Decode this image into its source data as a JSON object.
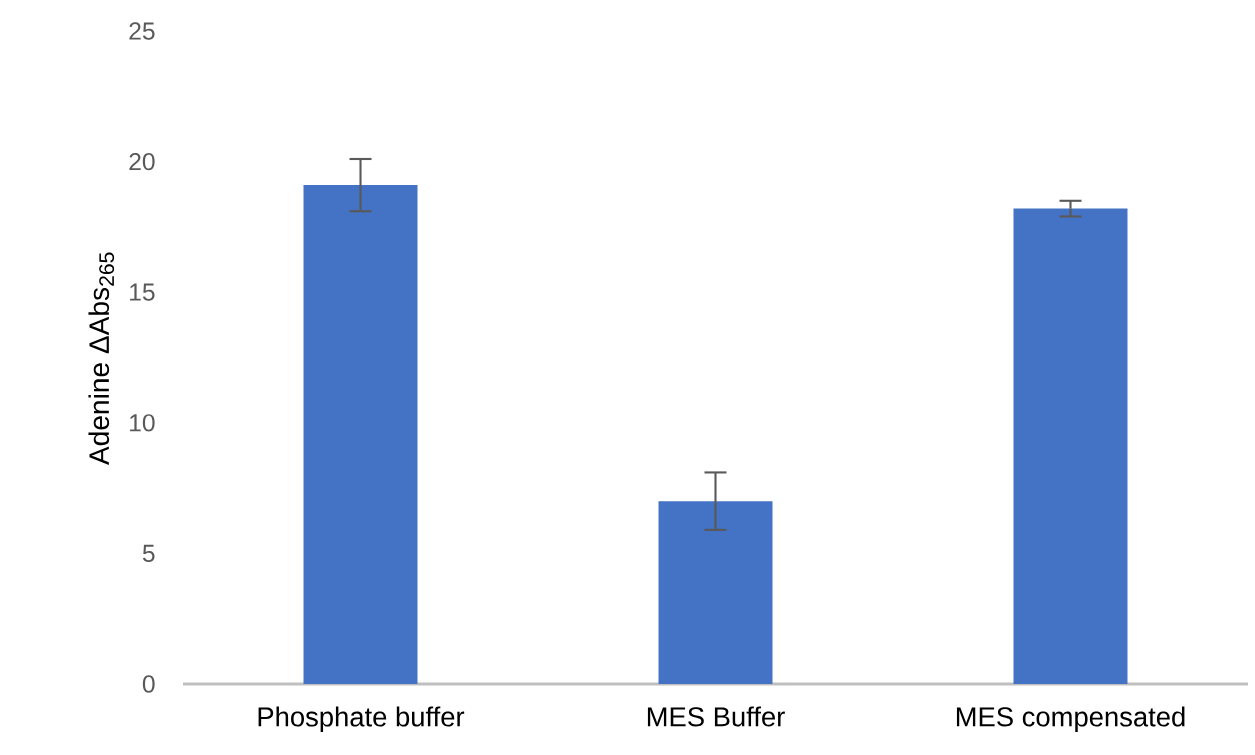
{
  "chart_data": {
    "type": "bar",
    "ylabel": "Adenine ΔAbs$_{265}$",
    "categories": [
      "Phosphate buffer",
      "MES Buffer",
      "MES compensated"
    ],
    "values": [
      19.1,
      7.0,
      18.2
    ],
    "errors": [
      1.0,
      1.1,
      0.3
    ],
    "color": "#4472c4",
    "ylim": [
      0,
      25
    ],
    "yticks": [
      0,
      5,
      10,
      15,
      20,
      25
    ]
  }
}
